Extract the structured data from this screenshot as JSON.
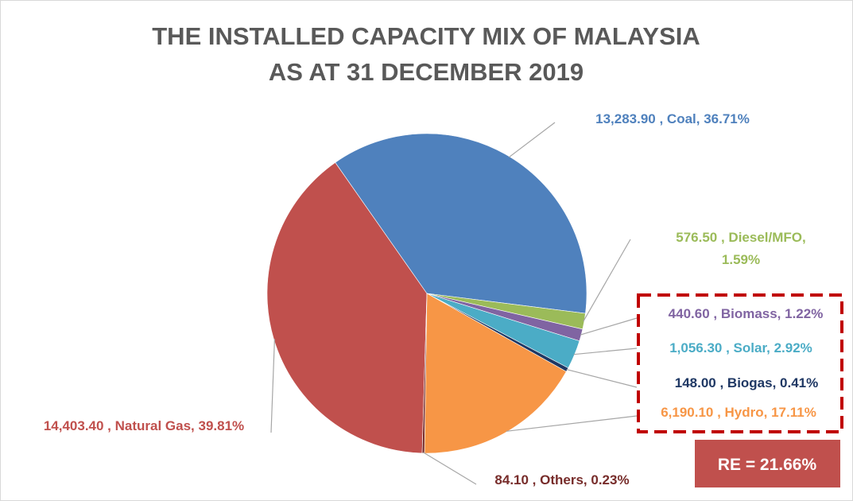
{
  "chart_data": {
    "type": "pie",
    "title": "THE INSTALLED CAPACITY MIX OF MALAYSIA",
    "subtitle": "AS AT 31 DECEMBER 2019",
    "slices": [
      {
        "name": "Coal",
        "value": 13283.9,
        "percent": 36.71,
        "label": "13,283.90 , Coal, 36.71%",
        "color": "#4f81bd"
      },
      {
        "name": "Diesel/MFO",
        "value": 576.5,
        "percent": 1.59,
        "label_line1": "576.50 , Diesel/MFO,",
        "label_line2": "1.59%",
        "color": "#9bbb59"
      },
      {
        "name": "Biomass",
        "value": 440.6,
        "percent": 1.22,
        "label": "440.60 , Biomass, 1.22%",
        "color": "#8064a2"
      },
      {
        "name": "Solar",
        "value": 1056.3,
        "percent": 2.92,
        "label": "1,056.30 , Solar, 2.92%",
        "color": "#4bacc6"
      },
      {
        "name": "Biogas",
        "value": 148.0,
        "percent": 0.41,
        "label": "148.00 , Biogas, 0.41%",
        "color": "#1f3864"
      },
      {
        "name": "Hydro",
        "value": 6190.1,
        "percent": 17.11,
        "label": "6,190.10 , Hydro, 17.11%",
        "color": "#f79646"
      },
      {
        "name": "Others",
        "value": 84.1,
        "percent": 0.23,
        "label": "84.10 , Others, 0.23%",
        "color": "#772c2a"
      },
      {
        "name": "Natural Gas",
        "value": 14403.4,
        "percent": 39.81,
        "label": "14,403.40 , Natural Gas, 39.81%",
        "color": "#c0504d"
      }
    ],
    "annotation": "RE = 21.66%",
    "highlight_color": "#c00000",
    "legend": "none"
  }
}
